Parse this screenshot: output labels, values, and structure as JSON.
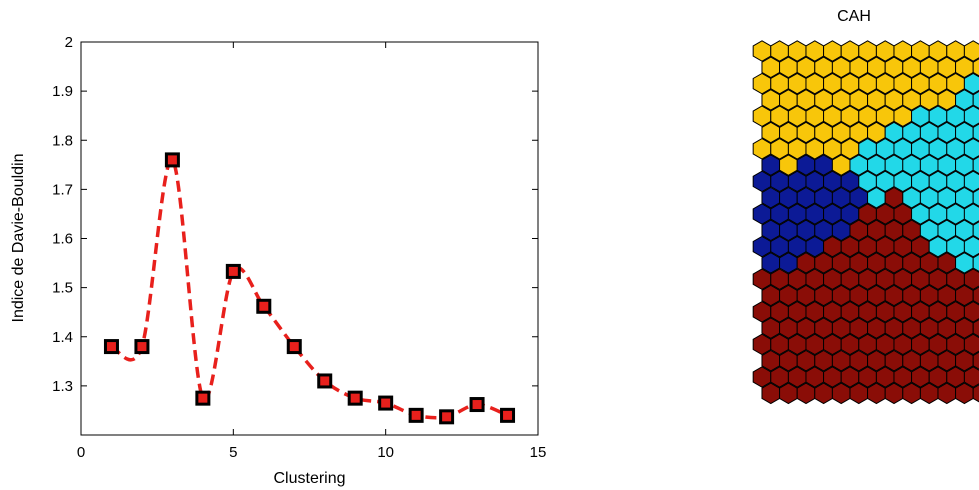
{
  "chart_data": [
    {
      "type": "line",
      "title": "",
      "xlabel": "Clustering",
      "ylabel": "Indice de Davie-Bouldin",
      "xlim": [
        0,
        15
      ],
      "ylim": [
        1.2,
        2.0
      ],
      "xticks": [
        "0",
        "5",
        "10",
        "15"
      ],
      "yticks": [
        "1.3",
        "1.4",
        "1.5",
        "1.6",
        "1.7",
        "1.8",
        "1.9",
        "2"
      ],
      "grid": false,
      "line_style": "dashed",
      "line_color": "#e8201c",
      "marker": "square",
      "marker_edge_color": "#000000",
      "marker_face_color": "#e8201c",
      "x": [
        1,
        2,
        3,
        4,
        5,
        6,
        7,
        8,
        9,
        10,
        11,
        12,
        13,
        14
      ],
      "values": [
        1.38,
        1.38,
        1.76,
        1.275,
        1.533,
        1.462,
        1.38,
        1.31,
        1.275,
        1.265,
        1.24,
        1.237,
        1.262,
        1.24
      ]
    },
    {
      "type": "heatmap",
      "subtype": "hexagonal-som-map",
      "title": "CAH",
      "clusters": [
        {
          "id": 1,
          "color": "#f8c60a"
        },
        {
          "id": 2,
          "color": "#22d8e8"
        },
        {
          "id": 3,
          "color": "#0c1a96"
        },
        {
          "id": 4,
          "color": "#8a0d07"
        }
      ],
      "grid_rows": [
        "1111111111111",
        "1111111111111",
        "1111111111112",
        "1111111111122",
        "1111111112222",
        "1111111222222",
        "1111112222222",
        "3133122222222",
        "3333332222222",
        "3333332422222",
        "3333334442222",
        "3333344442222",
        "3333444444222",
        "3344444444422",
        "4444444444444",
        "4444444444444",
        "4444444444444",
        "4444444444444",
        "4444444444444",
        "4444444444444",
        "4444444444444",
        "4444444444444"
      ]
    }
  ]
}
